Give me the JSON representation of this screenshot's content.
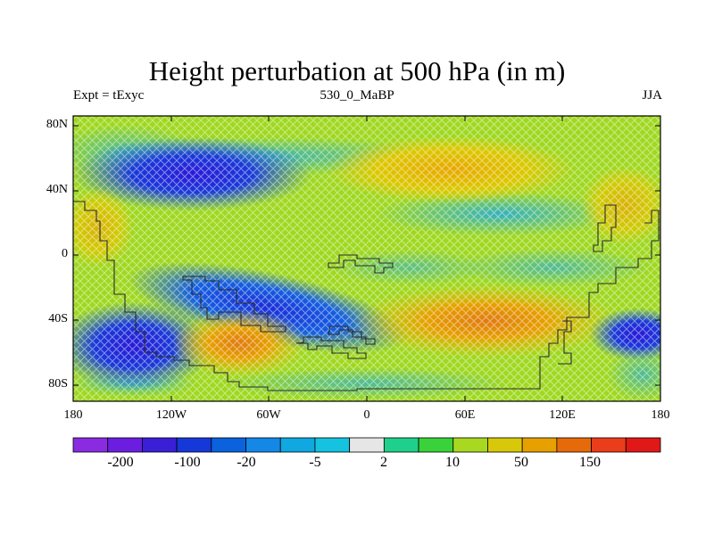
{
  "title": "Height perturbation at 500 hPa (in m)",
  "subtitle_left": "Expt = tExyc",
  "subtitle_center": "530_0_MaBP",
  "subtitle_right": "JJA",
  "lat_labels": [
    "80N",
    "40N",
    "0",
    "40S",
    "80S"
  ],
  "lon_labels": [
    "180",
    "120W",
    "60W",
    "0",
    "60E",
    "120E",
    "180"
  ],
  "colorbar": {
    "colors": [
      "#8a2be2",
      "#6b1ee0",
      "#3a1fd6",
      "#1638d8",
      "#0a62dc",
      "#1488e6",
      "#0fa8e0",
      "#15c2e0",
      "#e6e6e6",
      "#1fd08c",
      "#3ad23a",
      "#a8d820",
      "#d8c80a",
      "#e6a000",
      "#e66a0a",
      "#ea3d1a",
      "#e01818"
    ],
    "labels": [
      "-200",
      "-100",
      "-20",
      "-5",
      "2",
      "10",
      "50",
      "150"
    ]
  },
  "map_data": {
    "extent": {
      "lon": [
        -180,
        180
      ],
      "lat": [
        -90,
        90
      ]
    },
    "background_level": "10",
    "anomalies": [
      {
        "lon": -95,
        "lat": 48,
        "sign": "negative",
        "level": "-100"
      },
      {
        "lon": 35,
        "lat": 50,
        "sign": "positive",
        "level": "50"
      },
      {
        "lon": -150,
        "lat": -55,
        "sign": "negative",
        "level": "-100"
      },
      {
        "lon": -70,
        "lat": -55,
        "sign": "positive",
        "level": "150"
      },
      {
        "lon": -40,
        "lat": -32,
        "sign": "negative",
        "level": "-100"
      },
      {
        "lon": 95,
        "lat": -42,
        "sign": "positive",
        "level": "150"
      },
      {
        "lon": 165,
        "lat": -47,
        "sign": "negative",
        "level": "-100"
      }
    ]
  }
}
